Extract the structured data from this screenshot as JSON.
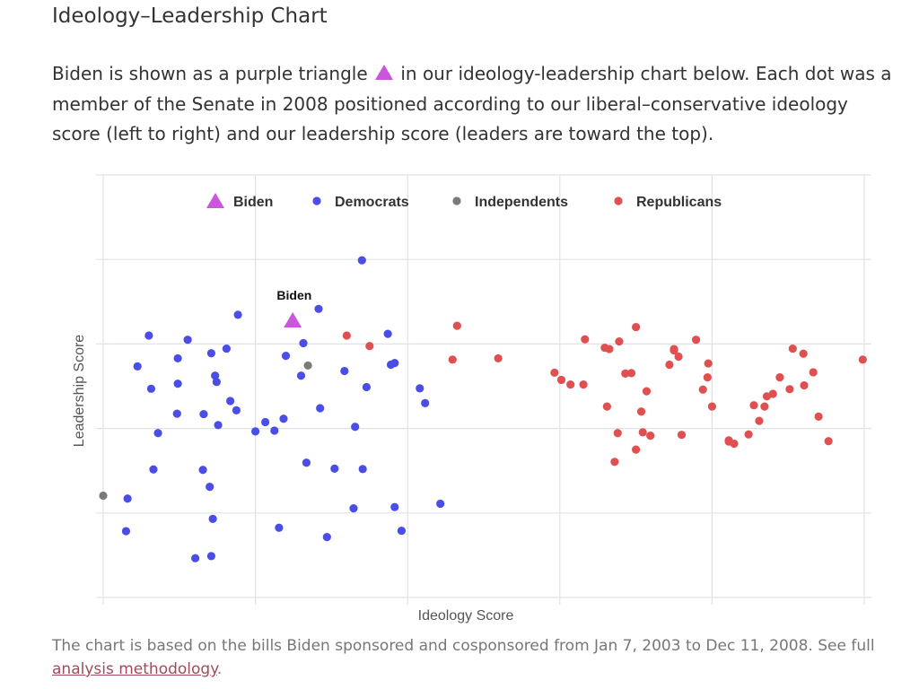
{
  "page": {
    "title": "Ideology–Leadership Chart",
    "intro_before": "Biden is shown as a purple triangle",
    "intro_after": "in our ideology-leadership chart below. Each dot was a member of the Senate in 2008 positioned according to our liberal–conservative ideology score (left to right) and our leadership score (leaders are toward the top).",
    "footnote_text": "The chart is based on the bills Biden sponsored and cosponsored from Jan 7, 2003 to Dec 11, 2008. See full ",
    "footnote_link": "analysis methodology",
    "footnote_end": "."
  },
  "chart_data": {
    "type": "scatter",
    "title": "",
    "xlabel": "Ideology Score",
    "ylabel": "Leadership Score",
    "xlim": [
      0,
      1
    ],
    "ylim": [
      0,
      1
    ],
    "grid": true,
    "legend_position": "top-center",
    "annotations": [
      {
        "text": "Biden",
        "x": 0.251,
        "y": 0.705
      }
    ],
    "series": [
      {
        "name": "Biden",
        "marker": "triangle",
        "color": "#cc55dd",
        "points": [
          [
            0.249,
            0.657
          ]
        ]
      },
      {
        "name": "Democrats",
        "marker": "circle",
        "color": "#4a4de6",
        "points": [
          [
            0.34,
            0.798
          ],
          [
            0.177,
            0.669
          ],
          [
            0.283,
            0.683
          ],
          [
            0.06,
            0.62
          ],
          [
            0.111,
            0.61
          ],
          [
            0.098,
            0.566
          ],
          [
            0.098,
            0.506
          ],
          [
            0.063,
            0.494
          ],
          [
            0.045,
            0.547
          ],
          [
            0.162,
            0.589
          ],
          [
            0.167,
            0.465
          ],
          [
            0.175,
            0.443
          ],
          [
            0.132,
            0.434
          ],
          [
            0.097,
            0.435
          ],
          [
            0.032,
            0.234
          ],
          [
            0.072,
            0.389
          ],
          [
            0.066,
            0.303
          ],
          [
            0.131,
            0.302
          ],
          [
            0.14,
            0.262
          ],
          [
            0.142,
            0.578
          ],
          [
            0.147,
            0.525
          ],
          [
            0.149,
            0.51
          ],
          [
            0.151,
            0.408
          ],
          [
            0.225,
            0.395
          ],
          [
            0.213,
            0.415
          ],
          [
            0.2,
            0.393
          ],
          [
            0.237,
            0.423
          ],
          [
            0.285,
            0.448
          ],
          [
            0.267,
            0.319
          ],
          [
            0.304,
            0.305
          ],
          [
            0.331,
            0.404
          ],
          [
            0.341,
            0.304
          ],
          [
            0.329,
            0.211
          ],
          [
            0.383,
            0.214
          ],
          [
            0.443,
            0.222
          ],
          [
            0.392,
            0.158
          ],
          [
            0.294,
            0.143
          ],
          [
            0.231,
            0.165
          ],
          [
            0.144,
            0.186
          ],
          [
            0.121,
            0.093
          ],
          [
            0.142,
            0.098
          ],
          [
            0.03,
            0.157
          ],
          [
            0.383,
            0.555
          ],
          [
            0.416,
            0.495
          ],
          [
            0.423,
            0.46
          ],
          [
            0.378,
            0.551
          ],
          [
            0.374,
            0.624
          ],
          [
            0.317,
            0.536
          ],
          [
            0.346,
            0.498
          ],
          [
            0.26,
            0.525
          ],
          [
            0.263,
            0.602
          ],
          [
            0.24,
            0.572
          ]
        ]
      },
      {
        "name": "Independents",
        "marker": "circle",
        "color": "#7a7a7a",
        "points": [
          [
            0.0,
            0.241
          ],
          [
            0.269,
            0.549
          ]
        ]
      },
      {
        "name": "Republicans",
        "marker": "circle",
        "color": "#e05050",
        "points": [
          [
            0.32,
            0.62
          ],
          [
            0.35,
            0.595
          ],
          [
            0.465,
            0.643
          ],
          [
            0.459,
            0.563
          ],
          [
            0.519,
            0.566
          ],
          [
            0.593,
            0.532
          ],
          [
            0.602,
            0.515
          ],
          [
            0.614,
            0.504
          ],
          [
            0.631,
            0.504
          ],
          [
            0.662,
            0.452
          ],
          [
            0.665,
            0.588
          ],
          [
            0.678,
            0.606
          ],
          [
            0.686,
            0.53
          ],
          [
            0.694,
            0.531
          ],
          [
            0.7,
            0.64
          ],
          [
            0.707,
            0.44
          ],
          [
            0.709,
            0.391
          ],
          [
            0.714,
            0.488
          ],
          [
            0.75,
            0.585
          ],
          [
            0.788,
            0.492
          ],
          [
            0.794,
            0.521
          ],
          [
            0.8,
            0.452
          ],
          [
            0.822,
            0.369
          ],
          [
            0.822,
            0.372
          ],
          [
            0.829,
            0.364
          ],
          [
            0.848,
            0.386
          ],
          [
            0.855,
            0.455
          ],
          [
            0.862,
            0.418
          ],
          [
            0.869,
            0.452
          ],
          [
            0.872,
            0.476
          ],
          [
            0.88,
            0.482
          ],
          [
            0.889,
            0.521
          ],
          [
            0.902,
            0.493
          ],
          [
            0.906,
            0.589
          ],
          [
            0.921,
            0.502
          ],
          [
            0.92,
            0.577
          ],
          [
            0.933,
            0.533
          ],
          [
            0.94,
            0.428
          ],
          [
            0.953,
            0.37
          ],
          [
            0.998,
            0.563
          ],
          [
            0.633,
            0.611
          ],
          [
            0.659,
            0.591
          ],
          [
            0.744,
            0.551
          ],
          [
            0.75,
            0.588
          ],
          [
            0.756,
            0.57
          ],
          [
            0.779,
            0.61
          ],
          [
            0.795,
            0.554
          ],
          [
            0.76,
            0.385
          ],
          [
            0.719,
            0.383
          ],
          [
            0.676,
            0.389
          ],
          [
            0.7,
            0.35
          ],
          [
            0.672,
            0.321
          ]
        ]
      }
    ]
  }
}
